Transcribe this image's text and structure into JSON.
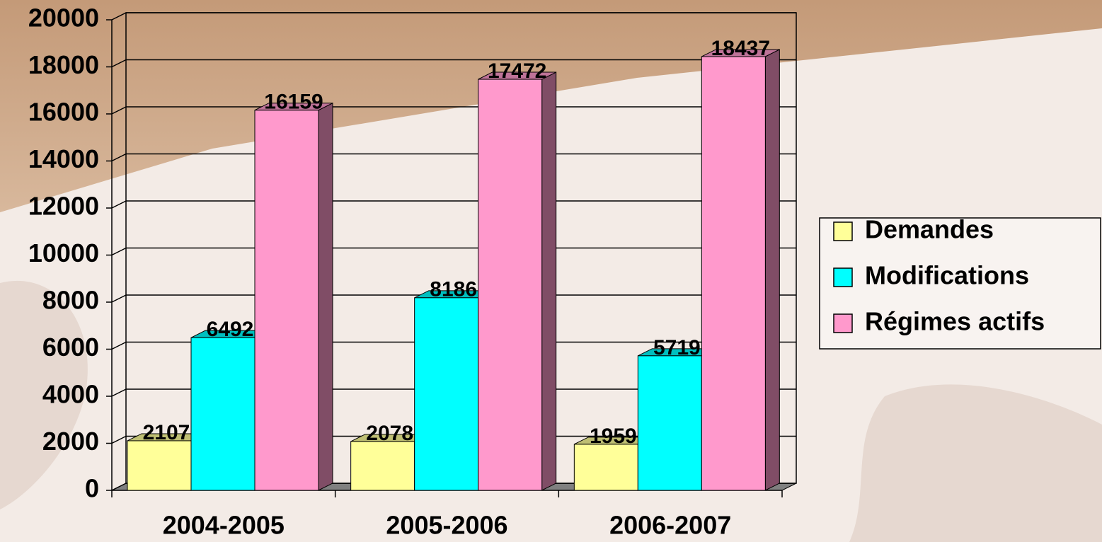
{
  "chart_data": {
    "type": "bar",
    "categories": [
      "2004-2005",
      "2005-2006",
      "2006-2007"
    ],
    "series": [
      {
        "name": "Demandes",
        "color": "#ffff99",
        "values": [
          2107,
          2078,
          1959
        ]
      },
      {
        "name": "Modifications",
        "color": "#00ffff",
        "values": [
          6492,
          8186,
          5719
        ]
      },
      {
        "name": "Régimes actifs",
        "color": "#ff99cc",
        "values": [
          16159,
          17472,
          18437
        ]
      }
    ],
    "ylim": [
      0,
      20000
    ],
    "yticks": [
      0,
      2000,
      4000,
      6000,
      8000,
      10000,
      12000,
      14000,
      16000,
      18000,
      20000
    ],
    "grid": true,
    "legend": "right"
  }
}
